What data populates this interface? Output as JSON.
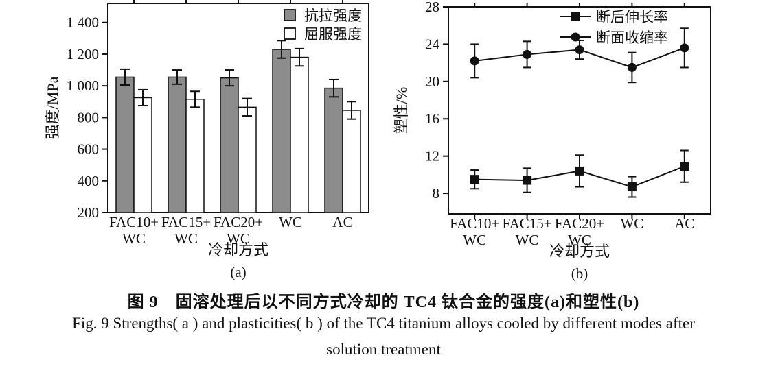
{
  "figure": {
    "caption_zh": "图 9　固溶处理后以不同方式冷却的 TC4 钛合金的强度(a)和塑性(b)",
    "caption_en_line1": "Fig. 9   Strengths( a )  and plasticities( b )  of the TC4 titanium alloys cooled by different modes after",
    "caption_en_line2": "solution treatment"
  },
  "colors": {
    "ink": "#111111",
    "bar_gray": "#8c8c8c",
    "bar_white": "#ffffff",
    "background": "#ffffff"
  },
  "chart_data": [
    {
      "id": "a",
      "type": "bar",
      "panel_label": "(a)",
      "xlabel": "冷却方式",
      "ylabel": "强度/MPa",
      "categories": [
        [
          "FAC10+",
          "WC"
        ],
        [
          "FAC15+",
          "WC"
        ],
        [
          "FAC20+",
          "WC"
        ],
        [
          "WC"
        ],
        [
          "AC"
        ]
      ],
      "ylim": [
        200,
        1520
      ],
      "ytick_values": [
        200,
        400,
        600,
        800,
        1000,
        1200,
        1400
      ],
      "ytick_labels": [
        "200",
        "400",
        "600",
        "800",
        "1 000",
        "1 200",
        "1 400"
      ],
      "grid": false,
      "legend_position": "top-right-inside",
      "series": [
        {
          "name": "抗拉强度",
          "fill_style": "filled",
          "color": "#8c8c8c",
          "values": [
            1055,
            1055,
            1050,
            1230,
            985
          ],
          "errors": [
            50,
            45,
            50,
            55,
            55
          ]
        },
        {
          "name": "屈服强度",
          "fill_style": "open",
          "color": "#ffffff",
          "values": [
            925,
            915,
            865,
            1180,
            845
          ],
          "errors": [
            50,
            50,
            55,
            55,
            55
          ]
        }
      ]
    },
    {
      "id": "b",
      "type": "line",
      "panel_label": "(b)",
      "xlabel": "冷却方式",
      "ylabel": "塑性/%",
      "categories": [
        [
          "FAC10+",
          "WC"
        ],
        [
          "FAC15+",
          "WC"
        ],
        [
          "FAC20+",
          "WC"
        ],
        [
          "WC"
        ],
        [
          "AC"
        ]
      ],
      "ylim": [
        5.8,
        28
      ],
      "ytick_values": [
        8,
        12,
        16,
        20,
        24,
        28
      ],
      "ytick_labels": [
        "8",
        "12",
        "16",
        "20",
        "24",
        "28"
      ],
      "grid": false,
      "legend_position": "top-right-inside",
      "series": [
        {
          "name": "断后伸长率",
          "marker": "square",
          "values": [
            9.5,
            9.4,
            10.4,
            8.7,
            10.9
          ],
          "errors": [
            1.0,
            1.3,
            1.7,
            1.1,
            1.7
          ]
        },
        {
          "name": "断面收缩率",
          "marker": "circle",
          "values": [
            22.2,
            22.9,
            23.4,
            21.5,
            23.6
          ],
          "errors": [
            1.8,
            1.4,
            1.0,
            1.6,
            2.1
          ]
        }
      ]
    }
  ]
}
